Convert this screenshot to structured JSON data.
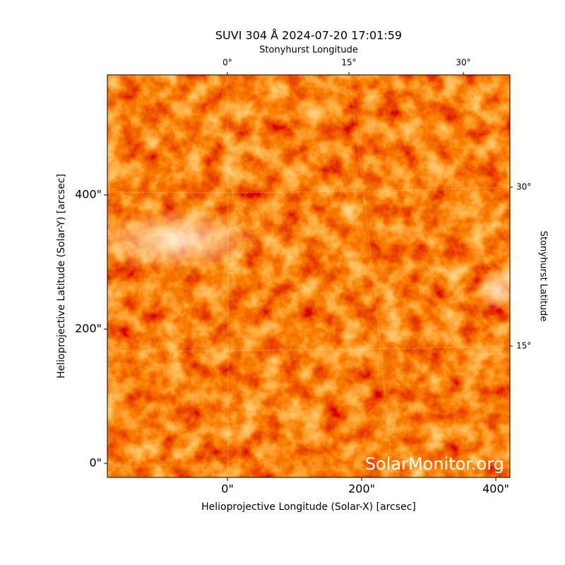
{
  "chart_data": {
    "type": "image",
    "title": "SUVI 304 Å 2024-07-20 17:01:59",
    "x_label": "Helioprojective Longitude (Solar-X) [arcsec]",
    "y_label": "Helioprojective Latitude (Solar-Y) [arcsec]",
    "top_label": "Stonyhurst Longitude",
    "right_label": "Stonyhurst Latitude",
    "top_ticks": [
      "0°",
      "15°",
      "30°"
    ],
    "right_ticks": [
      "30°",
      "15°"
    ],
    "watermark": "SolarMonitor.org",
    "xlim": [
      -179,
      421
    ],
    "ylim": [
      -21,
      579
    ],
    "xticks": [
      {
        "value": 0,
        "label": "0\""
      },
      {
        "value": 200,
        "label": "200\""
      },
      {
        "value": 400,
        "label": "400\""
      }
    ],
    "yticks": [
      {
        "value": 0,
        "label": "0\""
      },
      {
        "value": 200,
        "label": "200\""
      },
      {
        "value": 400,
        "label": "400\""
      }
    ]
  }
}
